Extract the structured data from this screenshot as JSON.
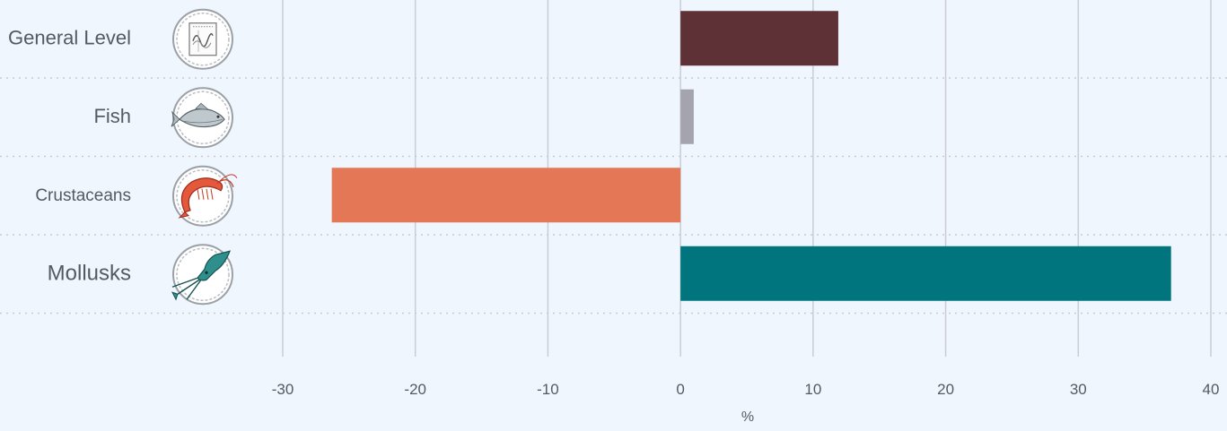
{
  "chart_data": {
    "type": "bar",
    "orientation": "horizontal",
    "categories": [
      "General Level",
      "Fish",
      "Crustaceans",
      "Mollusks"
    ],
    "icons": [
      "chart-icon",
      "fish-icon",
      "shrimp-icon",
      "squid-icon"
    ],
    "values": [
      11.9,
      1.0,
      -26.3,
      37.0
    ],
    "colors": [
      "#5e3137",
      "#a4a4ae",
      "#e47756",
      "#00757d"
    ],
    "xlabel": "%",
    "xlim": [
      -30,
      40
    ],
    "xticks": [
      -30,
      -20,
      -10,
      0,
      10,
      20,
      30,
      40
    ],
    "grid": true
  }
}
